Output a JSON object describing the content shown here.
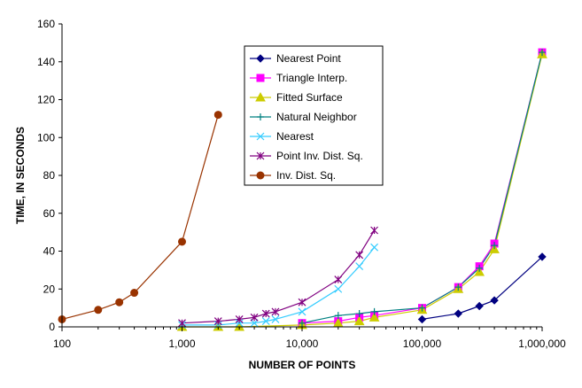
{
  "chart_data": {
    "type": "line",
    "xlabel": "NUMBER OF POINTS",
    "ylabel": "TIME, IN SECONDS",
    "x_scale": "log",
    "xlim": [
      100,
      1000000
    ],
    "ylim": [
      0,
      160
    ],
    "x_ticks": [
      100,
      1000,
      10000,
      100000,
      1000000
    ],
    "x_tick_labels": [
      "100",
      "1,000",
      "10,000",
      "100,000",
      "1,000,000"
    ],
    "y_ticks": [
      0,
      20,
      40,
      60,
      80,
      100,
      120,
      140,
      160
    ],
    "y_tick_labels": [
      "0",
      "20",
      "40",
      "60",
      "80",
      "100",
      "120",
      "140",
      "160"
    ],
    "grid": false,
    "legend_position": "top-center",
    "series": [
      {
        "name": "Nearest Point",
        "color": "#000080",
        "marker": "diamond",
        "x": [
          100000,
          200000,
          300000,
          400000,
          1000000
        ],
        "y": [
          4,
          7,
          11,
          14,
          37
        ]
      },
      {
        "name": "Triangle Interp.",
        "color": "#FF00FF",
        "marker": "square",
        "x": [
          10000,
          20000,
          30000,
          40000,
          100000,
          200000,
          300000,
          400000,
          1000000
        ],
        "y": [
          2,
          3,
          5,
          6,
          10,
          21,
          32,
          44,
          145
        ]
      },
      {
        "name": "Fitted Surface",
        "color": "#CCCC00",
        "marker": "triangle",
        "x": [
          1000,
          2000,
          3000,
          10000,
          20000,
          30000,
          40000,
          100000,
          200000,
          300000,
          400000,
          1000000
        ],
        "y": [
          0,
          0,
          0,
          1,
          2,
          3,
          5,
          9,
          20,
          29,
          41,
          144
        ]
      },
      {
        "name": "Natural Neighbor",
        "color": "#008080",
        "marker": "plus",
        "x": [
          10000,
          20000,
          30000,
          40000,
          100000,
          200000,
          300000,
          400000,
          1000000
        ],
        "y": [
          2,
          6,
          7,
          8,
          10,
          21,
          31,
          43,
          145
        ]
      },
      {
        "name": "Nearest",
        "color": "#33CCFF",
        "marker": "x",
        "x": [
          1000,
          2000,
          3000,
          4000,
          5000,
          6000,
          10000,
          20000,
          30000,
          40000
        ],
        "y": [
          1,
          1,
          2,
          2,
          3,
          4,
          8,
          20,
          32,
          42
        ]
      },
      {
        "name": "Point Inv. Dist. Sq.",
        "color": "#800080",
        "marker": "star",
        "x": [
          1000,
          2000,
          3000,
          4000,
          5000,
          6000,
          10000,
          20000,
          30000,
          40000
        ],
        "y": [
          2,
          3,
          4,
          5,
          7,
          8,
          13,
          25,
          38,
          51
        ]
      },
      {
        "name": "Inv. Dist. Sq.",
        "color": "#993300",
        "marker": "circle",
        "x": [
          100,
          200,
          300,
          400,
          1000,
          2000
        ],
        "y": [
          4,
          9,
          13,
          18,
          45,
          112
        ]
      }
    ]
  }
}
